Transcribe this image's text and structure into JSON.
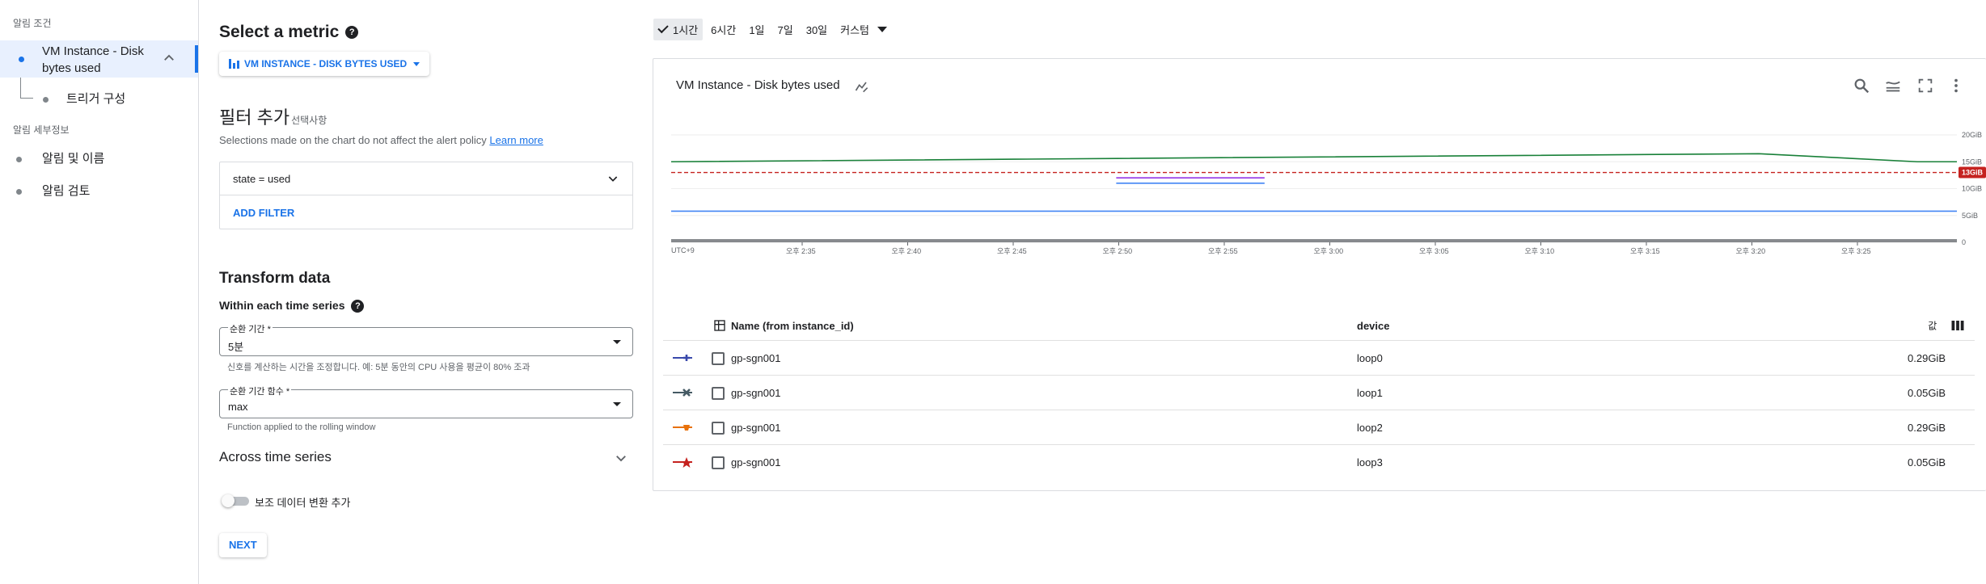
{
  "sidebar": {
    "section_conditions": "알림 조건",
    "active_item": "VM Instance - Disk bytes used",
    "sub_item": "트리거 구성",
    "section_details": "알림 세부정보",
    "item_notifications": "알림 및 이름",
    "item_review": "알림 검토"
  },
  "form": {
    "select_metric_title": "Select a metric",
    "metric_button": "VM INSTANCE - DISK BYTES USED",
    "filter_title": "필터 추가",
    "filter_optional": "선택사항",
    "filter_desc": "Selections made on the chart do not affect the alert policy",
    "learn_more": "Learn more",
    "filter_value": "state = used",
    "add_filter": "ADD FILTER",
    "transform_title": "Transform data",
    "within_title": "Within each time series",
    "rolling_window_label": "순환 기간 *",
    "rolling_window_value": "5분",
    "rolling_window_hint": "신호를 계산하는 시간을 조정합니다. 예: 5분 동안의 CPU 사용을 평균이 80% 조과",
    "rolling_fn_label": "순환 기간 함수 *",
    "rolling_fn_value": "max",
    "rolling_fn_hint": "Function applied to the rolling window",
    "across_title": "Across time series",
    "toggle_label": "보조 데이터 변환 추가",
    "next_button": "NEXT"
  },
  "timebar": {
    "options": [
      "1시간",
      "6시간",
      "1일",
      "7일",
      "30일",
      "커스텀"
    ],
    "selected": "1시간"
  },
  "chart": {
    "title": "VM Instance - Disk bytes used",
    "threshold_label": "13GiB",
    "timezone": "UTC+9"
  },
  "chart_data": {
    "type": "line",
    "x": [
      "오후 2:35",
      "오후 2:40",
      "오후 2:45",
      "오후 2:50",
      "오후 2:55",
      "오후 3:00",
      "오후 3:05",
      "오후 3:10",
      "오후 3:15",
      "오후 3:20",
      "오후 3:25"
    ],
    "y_ticks": [
      "0",
      "5GiB",
      "10GiB",
      "15GiB",
      "20GiB"
    ],
    "ylim": [
      0,
      20
    ],
    "threshold": 13,
    "threshold_color": "#c5221f",
    "series_colors": {
      "green": "#188038",
      "blue": "#4285f4",
      "purple": "#a142f4",
      "magenta": "#c5221f",
      "gray": "#5f6368"
    },
    "series": [
      {
        "color": "#188038",
        "points": [
          [
            0,
            15.0
          ],
          [
            11.0,
            16.5
          ],
          [
            12.6,
            15.0
          ],
          [
            13.0,
            15.0
          ]
        ]
      },
      {
        "color": "#4285f4",
        "points": [
          [
            0,
            5.8
          ],
          [
            13.0,
            5.8
          ]
        ]
      },
      {
        "color": "#9334e6",
        "points": [
          [
            4.5,
            12.0
          ],
          [
            6.0,
            12.0
          ]
        ]
      },
      {
        "color": "#4285f4",
        "points": [
          [
            4.5,
            11.0
          ],
          [
            6.0,
            11.0
          ]
        ]
      }
    ]
  },
  "table": {
    "headers": {
      "name": "Name (from instance_id)",
      "device": "device"
    },
    "rows": [
      {
        "name": "gp-sgn001",
        "device": "loop0",
        "value": "0.29GiB",
        "color": "#3949ab",
        "marker": "plus"
      },
      {
        "name": "gp-sgn001",
        "device": "loop1",
        "value": "0.05GiB",
        "color": "#455a64",
        "marker": "x"
      },
      {
        "name": "gp-sgn001",
        "device": "loop2",
        "value": "0.29GiB",
        "color": "#e8710a",
        "marker": "cup"
      },
      {
        "name": "gp-sgn001",
        "device": "loop3",
        "value": "0.05GiB",
        "color": "#c5221f",
        "marker": "star"
      }
    ]
  }
}
